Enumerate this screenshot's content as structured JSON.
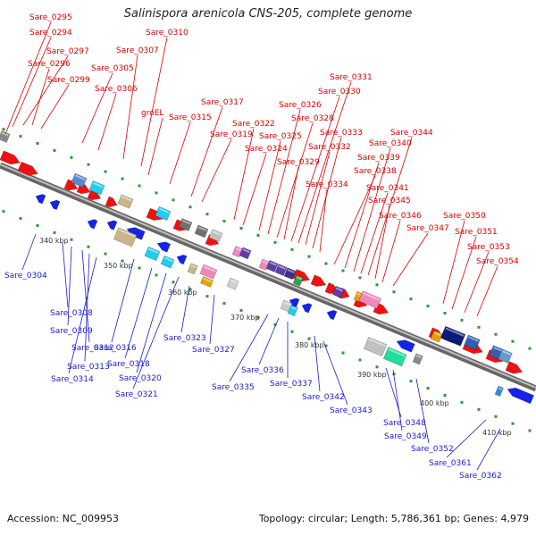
{
  "title": "Salinispora arenicola CNS-205, complete genome",
  "footer": {
    "accession": "Accession: NC_009953",
    "summary": "Topology: circular; Length: 5,786,361 bp; Genes: 4,979"
  },
  "colors": {
    "top_label": "#d80000",
    "bottom_label": "#1a1ad0",
    "backbone": "#888888",
    "tick_dot": "#2e9a2e"
  },
  "scale_ticks": [
    "340 kbp",
    "350 kbp",
    "360 kbp",
    "370 kbp",
    "380 kbp",
    "390 kbp",
    "400 kbp",
    "410 kbp"
  ],
  "top_labels": [
    "Sare_0295",
    "Sare_0294",
    "Sare_0297",
    "Sare_0296",
    "Sare_0299",
    "Sare_0305",
    "Sare_0306",
    "Sare_0307",
    "Sare_0310",
    "groEL",
    "Sare_0315",
    "Sare_0317",
    "Sare_0319",
    "Sare_0322",
    "Sare_0324",
    "Sare_0325",
    "Sare_0326",
    "Sare_0328",
    "Sare_0329",
    "Sare_0330",
    "Sare_0331",
    "Sare_0332",
    "Sare_0333",
    "Sare_0334",
    "Sare_0338",
    "Sare_0339",
    "Sare_0340",
    "Sare_0341",
    "Sare_0344",
    "Sare_0345",
    "Sare_0346",
    "Sare_0347",
    "Sare_0350",
    "Sare_0351",
    "Sare_0353",
    "Sare_0354"
  ],
  "bottom_labels": [
    "Sare_0304",
    "Sare_0308",
    "Sare_0309",
    "Sare_0312",
    "Sare_0313",
    "Sare_0314",
    "Sare_0316",
    "Sare_0318",
    "Sare_0320",
    "Sare_0321",
    "Sare_0323",
    "Sare_0327",
    "Sare_0335",
    "Sare_0336",
    "Sare_0337",
    "Sare_0342",
    "Sare_0343",
    "Sare_0348",
    "Sare_0349",
    "Sare_0352",
    "Sare_0361",
    "Sare_0362"
  ]
}
